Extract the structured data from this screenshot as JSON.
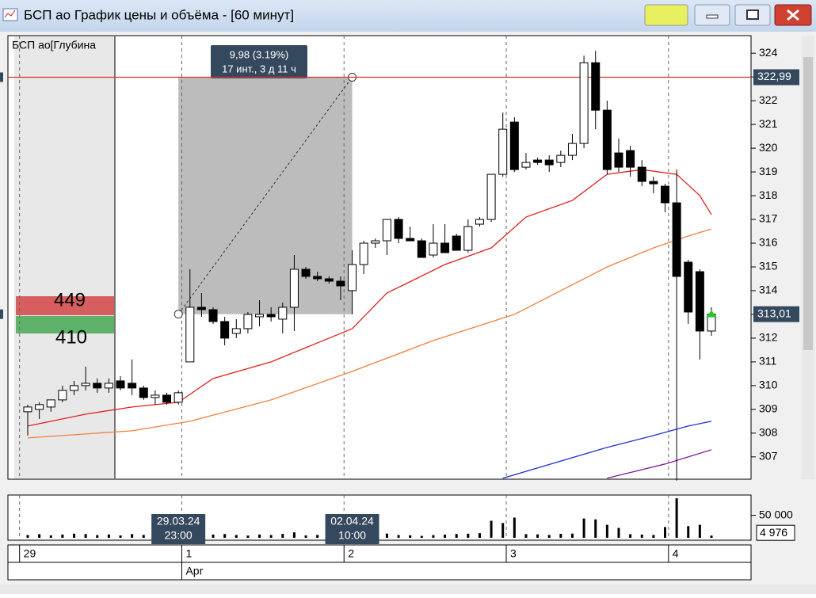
{
  "title": "БСП ао График цены и объёма - [60 минут]",
  "chart_data": {
    "type": "candlestick",
    "panel_label": "БСП ао[Глубина",
    "depth": {
      "ask": 449,
      "bid": 410
    },
    "categories": [
      "29",
      null,
      null,
      null,
      null,
      null,
      null,
      null,
      null,
      null,
      null,
      null,
      null,
      null,
      "1",
      null,
      null,
      null,
      null,
      null,
      null,
      null,
      null,
      null,
      null,
      null,
      null,
      null,
      "2",
      null,
      null,
      null,
      null,
      null,
      null,
      null,
      null,
      null,
      null,
      null,
      null,
      null,
      "3",
      null,
      null,
      null,
      null,
      null,
      null,
      null,
      null,
      null,
      null,
      null,
      null,
      null,
      "4",
      null,
      null,
      null
    ],
    "month_label": "Apr",
    "open": [
      308.9,
      309.0,
      309.1,
      309.4,
      309.8,
      310.0,
      310.1,
      309.9,
      310.2,
      310.1,
      309.9,
      309.5,
      309.6,
      309.3,
      311.0,
      313.3,
      313.2,
      312.7,
      312.2,
      312.4,
      312.9,
      313.0,
      312.8,
      313.3,
      314.9,
      314.6,
      314.5,
      314.4,
      314.0,
      315.1,
      316.0,
      316.1,
      317.0,
      316.2,
      316.1,
      315.5,
      316.0,
      316.3,
      315.7,
      316.8,
      317.0,
      318.9,
      321.1,
      319.2,
      319.5,
      319.5,
      319.4,
      319.7,
      320.2,
      323.6,
      321.6,
      319.8,
      319.9,
      319.2,
      318.6,
      318.4,
      317.7,
      315.2,
      314.8,
      312.3
    ],
    "high": [
      309.2,
      309.3,
      309.4,
      310.0,
      310.2,
      310.8,
      310.3,
      310.3,
      310.4,
      311.1,
      310.0,
      309.8,
      309.7,
      309.8,
      314.9,
      313.9,
      313.3,
      312.9,
      312.8,
      313.1,
      313.6,
      313.3,
      313.5,
      315.5,
      315.0,
      314.8,
      314.6,
      314.6,
      315.7,
      316.1,
      316.2,
      317.0,
      317.1,
      316.7,
      316.2,
      316.8,
      316.8,
      316.4,
      317.0,
      317.1,
      318.9,
      321.5,
      321.3,
      319.8,
      319.6,
      319.7,
      319.9,
      320.6,
      323.9,
      324.1,
      322.0,
      320.4,
      320.1,
      319.5,
      318.8,
      318.5,
      319.1,
      315.3,
      314.9,
      313.3
    ],
    "low": [
      307.9,
      308.6,
      308.9,
      309.3,
      309.6,
      309.8,
      309.7,
      309.7,
      309.8,
      309.6,
      309.4,
      309.2,
      309.2,
      309.2,
      311.0,
      312.9,
      312.6,
      311.7,
      312.0,
      312.2,
      312.5,
      312.7,
      312.2,
      312.3,
      314.5,
      314.4,
      314.3,
      313.6,
      313.0,
      314.7,
      315.8,
      315.5,
      316.0,
      316.1,
      315.4,
      315.4,
      315.6,
      315.7,
      315.6,
      316.7,
      316.9,
      318.8,
      319.0,
      319.1,
      319.3,
      319.0,
      319.2,
      319.5,
      320.0,
      320.8,
      318.9,
      319.0,
      318.8,
      318.4,
      318.1,
      317.3,
      306.0,
      312.6,
      311.1,
      312.1
    ],
    "close": [
      309.1,
      309.2,
      309.4,
      309.8,
      310.0,
      310.1,
      309.9,
      310.1,
      309.9,
      309.9,
      309.5,
      309.6,
      309.3,
      309.7,
      313.3,
      313.2,
      312.7,
      312.0,
      312.4,
      313.0,
      313.0,
      312.9,
      313.3,
      314.9,
      314.6,
      314.5,
      314.4,
      314.2,
      315.1,
      316.0,
      316.1,
      317.0,
      316.2,
      316.1,
      315.4,
      316.0,
      315.6,
      315.7,
      316.7,
      317.0,
      318.9,
      320.8,
      319.1,
      319.4,
      319.4,
      319.3,
      319.7,
      320.2,
      323.6,
      321.6,
      319.1,
      319.2,
      319.2,
      318.6,
      318.5,
      317.7,
      314.6,
      313.1,
      312.3,
      313.01
    ],
    "up_color": "#ffffff",
    "down_color": "#000000",
    "series": [
      {
        "color": "#e02020",
        "x": [
          0,
          5,
          9,
          13,
          16,
          21,
          25,
          28,
          31,
          36,
          40,
          43,
          47,
          50,
          53,
          56,
          58,
          59
        ],
        "values": [
          308.3,
          308.8,
          309.1,
          309.3,
          310.3,
          311.0,
          311.8,
          312.4,
          313.9,
          315.1,
          315.8,
          317.1,
          317.8,
          318.9,
          319.1,
          318.9,
          318.0,
          317.2
        ]
      },
      {
        "color": "#f08040",
        "x": [
          0,
          9,
          14,
          21,
          28,
          35,
          42,
          46,
          50,
          54,
          57,
          59
        ],
        "values": [
          307.8,
          308.1,
          308.5,
          309.4,
          310.6,
          311.9,
          313.0,
          314.0,
          315.0,
          315.8,
          316.3,
          316.6
        ]
      },
      {
        "color": "#2030d0",
        "x": [
          41,
          50,
          54,
          57,
          59
        ],
        "values": [
          306.1,
          307.4,
          307.9,
          308.3,
          308.5
        ]
      },
      {
        "color": "#8020a0",
        "x": [
          50,
          55,
          59
        ],
        "values": [
          306.1,
          306.7,
          307.3
        ]
      }
    ],
    "ylim": [
      306.06,
      324.74
    ],
    "yticks": [
      307,
      308,
      309,
      310,
      311,
      312,
      313,
      314,
      315,
      316,
      317,
      318,
      319,
      320,
      321,
      322,
      323,
      324
    ],
    "level": {
      "value": 322.99,
      "label": "322,99",
      "color": "#e03030"
    },
    "last_price": {
      "value": 313.01,
      "label": "313,01"
    },
    "measure": {
      "from": 313.01,
      "to": 322.99,
      "text": [
        "9,98 (3.19%)",
        "17 инт., 3 д 11 ч"
      ]
    },
    "volume": {
      "values": [
        6200,
        8100,
        5400,
        7300,
        9200,
        8400,
        6100,
        7500,
        5200,
        8300,
        6400,
        5600,
        7100,
        9000,
        9300,
        12400,
        7200,
        8500,
        6300,
        5100,
        7400,
        6200,
        8600,
        12100,
        5300,
        6500,
        4200,
        7300,
        8200,
        7100,
        5300,
        9400,
        6200,
        5500,
        4300,
        6100,
        7300,
        8400,
        9200,
        10300,
        38000,
        33000,
        45000,
        8200,
        7600,
        6400,
        8800,
        9300,
        43000,
        41000,
        29000,
        22000,
        8100,
        7200,
        6300,
        24000,
        88000,
        26000,
        29000,
        4976
      ],
      "color": "#000000",
      "ylim": [
        0,
        90000
      ],
      "yticks": [
        {
          "value": 50000,
          "label": "50 000"
        }
      ],
      "last": {
        "value": 4976,
        "label": "4 976"
      }
    },
    "date_labels": [
      [
        "29.03.24",
        "23:00"
      ],
      [
        "02.04.24",
        "10:00"
      ]
    ]
  }
}
